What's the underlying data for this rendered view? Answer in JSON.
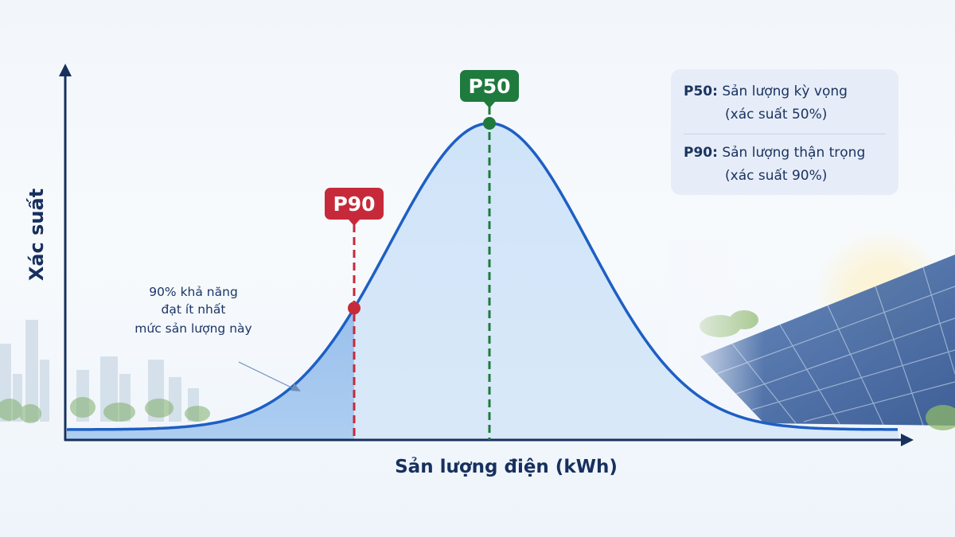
{
  "chart_data": {
    "type": "area",
    "xlabel": "Sản lượng điện (kWh)",
    "ylabel": "Xác suất",
    "distribution": "normal",
    "markers": [
      {
        "id": "p90",
        "label": "P90",
        "color": "#c62a3a"
      },
      {
        "id": "p50",
        "label": "P50",
        "color": "#1f7a3d"
      }
    ],
    "annotation": [
      "90% khả năng",
      "đạt ít nhất",
      "mức sản lượng này"
    ],
    "legend": [
      {
        "key": "P50:",
        "text": "Sản lượng kỳ vọng",
        "sub": "(xác suất 50%)"
      },
      {
        "key": "P90:",
        "text": "Sản lượng thận trọng",
        "sub": "(xác suất 90%)"
      }
    ],
    "legend_position": "top-right",
    "colors": {
      "curve": "#1d5fc4",
      "fill": "#b9d6f5",
      "axis": "#17305e"
    }
  }
}
